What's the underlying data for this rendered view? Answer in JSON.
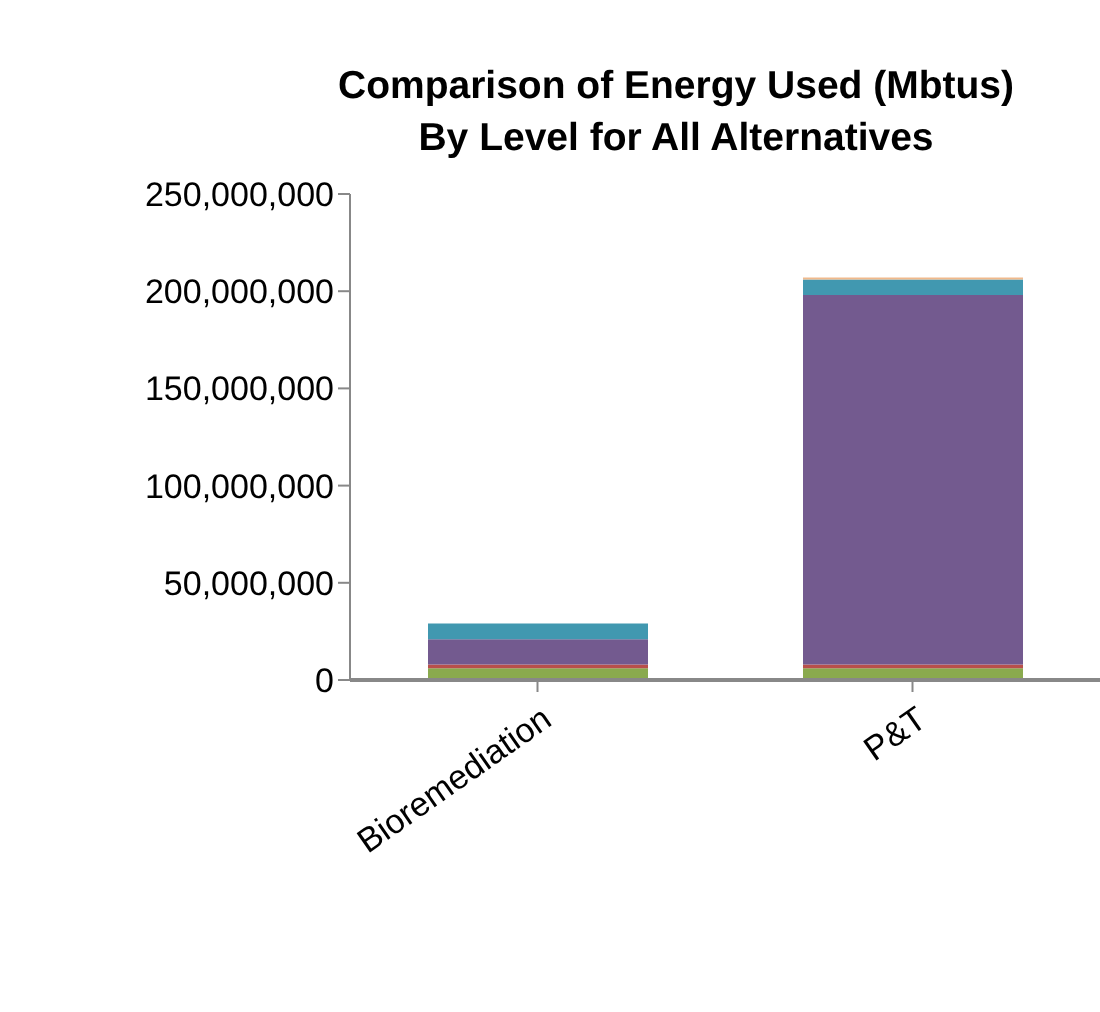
{
  "chart_data": {
    "type": "bar",
    "title": "Comparison of Energy Used (Mbtus) By Level for All Alternatives",
    "categories": [
      "Bioremediation",
      "P&T"
    ],
    "stacked": true,
    "series": [
      {
        "color": "#8aaa4e",
        "values": [
          6000000,
          6000000
        ]
      },
      {
        "color": "#b9504b",
        "values": [
          2000000,
          2000000
        ]
      },
      {
        "color": "#735a8f",
        "values": [
          13000000,
          190000000
        ]
      },
      {
        "color": "#4198b0",
        "values": [
          8000000,
          8000000
        ]
      },
      {
        "color": "#f0b98c",
        "values": [
          0,
          1000000
        ]
      }
    ],
    "ylim": [
      0,
      250000000
    ],
    "yticks": [
      0,
      {
        "value": 50000000,
        "label": "50,000,000"
      },
      {
        "value": 100000000,
        "label": "100,000,000"
      },
      {
        "value": 150000000,
        "label": "150,000,000"
      },
      {
        "value": 200000000,
        "label": "200,000,000"
      },
      {
        "value": 250000000,
        "label": "250,000,000"
      }
    ]
  }
}
